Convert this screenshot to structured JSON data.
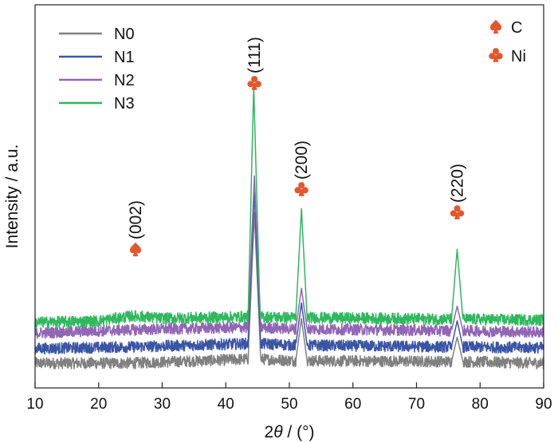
{
  "chart_data": {
    "type": "line",
    "title": "",
    "xlabel_prefix": "2",
    "xlabel_theta": "θ",
    "xlabel_suffix": " / (°)",
    "ylabel": "Intensity / a.u.",
    "xlim": [
      10,
      90
    ],
    "x_ticks": [
      10,
      20,
      30,
      40,
      50,
      60,
      70,
      80,
      90
    ],
    "y_ticks_shown": false,
    "grid": false,
    "legend_position": "top-left",
    "series": [
      {
        "name": "N0",
        "color": "#808080",
        "baseline": 0.0,
        "points": [
          [
            10,
            0.0
          ],
          [
            25,
            0.0
          ],
          [
            43.5,
            0.05
          ],
          [
            44.5,
            1.85
          ],
          [
            45.5,
            0.05
          ],
          [
            51.0,
            0.03
          ],
          [
            51.9,
            0.55
          ],
          [
            52.8,
            0.03
          ],
          [
            75.5,
            0.02
          ],
          [
            76.4,
            0.32
          ],
          [
            77.3,
            0.02
          ],
          [
            90,
            0.0
          ]
        ]
      },
      {
        "name": "N1",
        "color": "#3b55a5",
        "baseline": 0.18,
        "points": [
          [
            10,
            0.18
          ],
          [
            25,
            0.2
          ],
          [
            43.5,
            0.24
          ],
          [
            44.5,
            2.1
          ],
          [
            45.5,
            0.24
          ],
          [
            51.0,
            0.22
          ],
          [
            51.9,
            0.74
          ],
          [
            52.8,
            0.22
          ],
          [
            75.5,
            0.2
          ],
          [
            76.4,
            0.52
          ],
          [
            77.3,
            0.2
          ],
          [
            90,
            0.19
          ]
        ]
      },
      {
        "name": "N2",
        "color": "#9166b5",
        "baseline": 0.37,
        "points": [
          [
            10,
            0.37
          ],
          [
            25,
            0.41
          ],
          [
            43.5,
            0.44
          ],
          [
            44.5,
            2.3
          ],
          [
            45.5,
            0.44
          ],
          [
            51.0,
            0.42
          ],
          [
            51.9,
            0.92
          ],
          [
            52.8,
            0.42
          ],
          [
            75.5,
            0.4
          ],
          [
            76.4,
            0.7
          ],
          [
            77.3,
            0.4
          ],
          [
            90,
            0.38
          ]
        ]
      },
      {
        "name": "N3",
        "color": "#2fb85d",
        "baseline": 0.5,
        "points": [
          [
            10,
            0.5
          ],
          [
            20,
            0.52
          ],
          [
            25.5,
            0.58
          ],
          [
            30,
            0.55
          ],
          [
            43.5,
            0.57
          ],
          [
            44.4,
            3.4
          ],
          [
            45.4,
            0.57
          ],
          [
            51.0,
            0.56
          ],
          [
            51.9,
            1.9
          ],
          [
            52.8,
            0.56
          ],
          [
            75.5,
            0.54
          ],
          [
            76.4,
            1.4
          ],
          [
            77.3,
            0.54
          ],
          [
            90,
            0.53
          ]
        ]
      }
    ],
    "peak_annotations": [
      {
        "label": "(002)",
        "x": 25.8,
        "marker": "spade",
        "phase": "C"
      },
      {
        "label": "(111)",
        "x": 44.5,
        "marker": "club",
        "phase": "Ni"
      },
      {
        "label": "(200)",
        "x": 51.9,
        "marker": "club",
        "phase": "Ni"
      },
      {
        "label": "(220)",
        "x": 76.4,
        "marker": "club",
        "phase": "Ni"
      }
    ],
    "phase_legend": [
      {
        "marker": "spade",
        "label": "C",
        "color": "#e3572c"
      },
      {
        "marker": "club",
        "label": "Ni",
        "color": "#e3572c"
      }
    ],
    "marker_color": "#e3572c"
  }
}
